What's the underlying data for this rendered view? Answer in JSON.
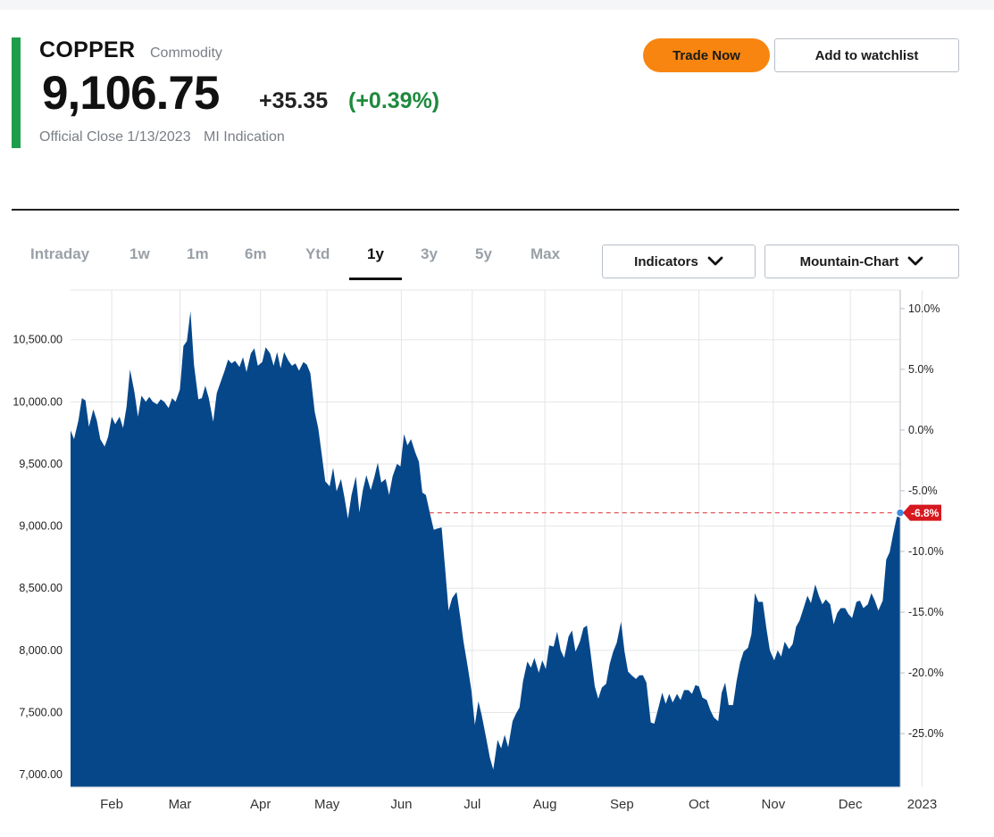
{
  "quote": {
    "name": "COPPER",
    "type": "Commodity",
    "price": "9,106.75",
    "change": "+35.35",
    "change_pct": "(+0.39%)",
    "close_label": "Official Close 1/13/2023",
    "indication": "MI Indication",
    "accent_color": "#1e9e4a",
    "change_color": "#1e8a3c"
  },
  "actions": {
    "trade_label": "Trade Now",
    "watchlist_label": "Add to watchlist",
    "trade_color": "#f7850f"
  },
  "range_tabs": [
    "Intraday",
    "1w",
    "1m",
    "6m",
    "Ytd",
    "1y",
    "3y",
    "5y",
    "Max"
  ],
  "active_tab": "1y",
  "dropdowns": {
    "indicators": "Indicators",
    "chart_type": "Mountain-Chart",
    "icon": "chevron-down-icon"
  },
  "chart_data": {
    "type": "area",
    "fill_color": "#06478a",
    "grid": true,
    "y_left": {
      "ticks": [
        "10,500.00",
        "10,000.00",
        "9,500.00",
        "9,000.00",
        "8,500.00",
        "8,000.00",
        "7,500.00",
        "7,000.00"
      ],
      "tick_values": [
        10500,
        10000,
        9500,
        9000,
        8500,
        8000,
        7500,
        7000
      ],
      "range": [
        6900,
        10900
      ]
    },
    "y_right": {
      "ticks": [
        "10.0%",
        "5.0%",
        "0.0%",
        "-5.0%",
        "-10.0%",
        "-15.0%",
        "-20.0%",
        "-25.0%"
      ],
      "tick_values": [
        10,
        5,
        0,
        -5,
        -10,
        -15,
        -20,
        -25
      ]
    },
    "x_ticks": [
      "Feb",
      "Mar",
      "Apr",
      "May",
      "Jun",
      "Jul",
      "Aug",
      "Sep",
      "Oct",
      "Nov",
      "Dec",
      "2023"
    ],
    "x_tick_values": [
      0.047,
      0.125,
      0.217,
      0.293,
      0.378,
      0.459,
      0.542,
      0.63,
      0.718,
      0.803,
      0.891,
      0.973
    ],
    "last_marker": {
      "label": "-6.8%",
      "value": 9107,
      "color": "#d7181f"
    },
    "points": [
      [
        0.0,
        9770
      ],
      [
        0.004,
        9700
      ],
      [
        0.009,
        9850
      ],
      [
        0.013,
        10030
      ],
      [
        0.017,
        10010
      ],
      [
        0.021,
        9800
      ],
      [
        0.026,
        9940
      ],
      [
        0.03,
        9850
      ],
      [
        0.034,
        9700
      ],
      [
        0.039,
        9640
      ],
      [
        0.043,
        9720
      ],
      [
        0.047,
        9880
      ],
      [
        0.051,
        9820
      ],
      [
        0.056,
        9880
      ],
      [
        0.06,
        9790
      ],
      [
        0.064,
        9960
      ],
      [
        0.068,
        10260
      ],
      [
        0.073,
        10080
      ],
      [
        0.077,
        9880
      ],
      [
        0.081,
        10050
      ],
      [
        0.086,
        10000
      ],
      [
        0.09,
        10040
      ],
      [
        0.094,
        10000
      ],
      [
        0.099,
        9980
      ],
      [
        0.103,
        10020
      ],
      [
        0.107,
        10000
      ],
      [
        0.112,
        9950
      ],
      [
        0.116,
        10030
      ],
      [
        0.12,
        10000
      ],
      [
        0.125,
        10100
      ],
      [
        0.129,
        10450
      ],
      [
        0.133,
        10490
      ],
      [
        0.137,
        10730
      ],
      [
        0.141,
        10300
      ],
      [
        0.146,
        10020
      ],
      [
        0.15,
        10030
      ],
      [
        0.154,
        10130
      ],
      [
        0.158,
        10030
      ],
      [
        0.163,
        9840
      ],
      [
        0.167,
        10070
      ],
      [
        0.171,
        10150
      ],
      [
        0.176,
        10250
      ],
      [
        0.18,
        10340
      ],
      [
        0.184,
        10310
      ],
      [
        0.188,
        10330
      ],
      [
        0.193,
        10280
      ],
      [
        0.197,
        10360
      ],
      [
        0.201,
        10240
      ],
      [
        0.206,
        10390
      ],
      [
        0.21,
        10430
      ],
      [
        0.214,
        10290
      ],
      [
        0.219,
        10320
      ],
      [
        0.223,
        10440
      ],
      [
        0.228,
        10390
      ],
      [
        0.232,
        10290
      ],
      [
        0.236,
        10400
      ],
      [
        0.24,
        10270
      ],
      [
        0.244,
        10400
      ],
      [
        0.249,
        10330
      ],
      [
        0.253,
        10290
      ],
      [
        0.257,
        10310
      ],
      [
        0.261,
        10250
      ],
      [
        0.266,
        10320
      ],
      [
        0.27,
        10300
      ],
      [
        0.274,
        10230
      ],
      [
        0.279,
        9920
      ],
      [
        0.283,
        9790
      ],
      [
        0.287,
        9580
      ],
      [
        0.291,
        9360
      ],
      [
        0.296,
        9320
      ],
      [
        0.3,
        9470
      ],
      [
        0.304,
        9280
      ],
      [
        0.309,
        9380
      ],
      [
        0.313,
        9230
      ],
      [
        0.317,
        9060
      ],
      [
        0.321,
        9250
      ],
      [
        0.326,
        9400
      ],
      [
        0.33,
        9110
      ],
      [
        0.334,
        9290
      ],
      [
        0.338,
        9410
      ],
      [
        0.343,
        9290
      ],
      [
        0.347,
        9390
      ],
      [
        0.351,
        9510
      ],
      [
        0.355,
        9350
      ],
      [
        0.36,
        9380
      ],
      [
        0.364,
        9250
      ],
      [
        0.368,
        9400
      ],
      [
        0.373,
        9500
      ],
      [
        0.377,
        9480
      ],
      [
        0.381,
        9740
      ],
      [
        0.385,
        9650
      ],
      [
        0.389,
        9700
      ],
      [
        0.394,
        9590
      ],
      [
        0.398,
        9520
      ],
      [
        0.402,
        9270
      ],
      [
        0.406,
        9250
      ],
      [
        0.411,
        9090
      ],
      [
        0.415,
        8970
      ],
      [
        0.419,
        8980
      ],
      [
        0.424,
        8990
      ],
      [
        0.428,
        8660
      ],
      [
        0.432,
        8320
      ],
      [
        0.436,
        8420
      ],
      [
        0.441,
        8470
      ],
      [
        0.445,
        8280
      ],
      [
        0.449,
        8070
      ],
      [
        0.454,
        7860
      ],
      [
        0.458,
        7680
      ],
      [
        0.462,
        7400
      ],
      [
        0.466,
        7590
      ],
      [
        0.47,
        7470
      ],
      [
        0.475,
        7290
      ],
      [
        0.479,
        7140
      ],
      [
        0.483,
        7040
      ],
      [
        0.488,
        7280
      ],
      [
        0.492,
        7210
      ],
      [
        0.496,
        7320
      ],
      [
        0.5,
        7220
      ],
      [
        0.505,
        7430
      ],
      [
        0.509,
        7490
      ],
      [
        0.513,
        7540
      ],
      [
        0.517,
        7750
      ],
      [
        0.522,
        7910
      ],
      [
        0.526,
        7860
      ],
      [
        0.53,
        7940
      ],
      [
        0.535,
        7820
      ],
      [
        0.539,
        7920
      ],
      [
        0.543,
        7850
      ],
      [
        0.547,
        8040
      ],
      [
        0.552,
        8030
      ],
      [
        0.556,
        8150
      ],
      [
        0.56,
        8000
      ],
      [
        0.564,
        7940
      ],
      [
        0.569,
        8110
      ],
      [
        0.573,
        8160
      ],
      [
        0.577,
        7990
      ],
      [
        0.582,
        8070
      ],
      [
        0.586,
        8180
      ],
      [
        0.59,
        8200
      ],
      [
        0.594,
        7990
      ],
      [
        0.599,
        7710
      ],
      [
        0.603,
        7610
      ],
      [
        0.607,
        7700
      ],
      [
        0.612,
        7730
      ],
      [
        0.616,
        7890
      ],
      [
        0.62,
        7990
      ],
      [
        0.624,
        8060
      ],
      [
        0.629,
        8230
      ],
      [
        0.633,
        7990
      ],
      [
        0.637,
        7830
      ],
      [
        0.641,
        7800
      ],
      [
        0.646,
        7770
      ],
      [
        0.65,
        7800
      ],
      [
        0.654,
        7800
      ],
      [
        0.658,
        7740
      ],
      [
        0.663,
        7420
      ],
      [
        0.667,
        7410
      ],
      [
        0.671,
        7520
      ],
      [
        0.676,
        7660
      ],
      [
        0.68,
        7570
      ],
      [
        0.684,
        7650
      ],
      [
        0.688,
        7580
      ],
      [
        0.693,
        7650
      ],
      [
        0.697,
        7600
      ],
      [
        0.701,
        7680
      ],
      [
        0.706,
        7680
      ],
      [
        0.71,
        7650
      ],
      [
        0.714,
        7720
      ],
      [
        0.718,
        7710
      ],
      [
        0.722,
        7620
      ],
      [
        0.727,
        7600
      ],
      [
        0.731,
        7520
      ],
      [
        0.735,
        7460
      ],
      [
        0.74,
        7430
      ],
      [
        0.744,
        7660
      ],
      [
        0.748,
        7740
      ],
      [
        0.752,
        7560
      ],
      [
        0.757,
        7560
      ],
      [
        0.761,
        7750
      ],
      [
        0.765,
        7900
      ],
      [
        0.769,
        7990
      ],
      [
        0.774,
        8020
      ],
      [
        0.778,
        8130
      ],
      [
        0.782,
        8460
      ],
      [
        0.786,
        8390
      ],
      [
        0.791,
        8390
      ],
      [
        0.795,
        8180
      ],
      [
        0.799,
        8000
      ],
      [
        0.804,
        7920
      ],
      [
        0.808,
        8000
      ],
      [
        0.812,
        7950
      ],
      [
        0.816,
        8070
      ],
      [
        0.821,
        8010
      ],
      [
        0.825,
        8050
      ],
      [
        0.829,
        8190
      ],
      [
        0.833,
        8240
      ],
      [
        0.838,
        8350
      ],
      [
        0.842,
        8440
      ],
      [
        0.846,
        8380
      ],
      [
        0.851,
        8530
      ],
      [
        0.855,
        8440
      ],
      [
        0.859,
        8370
      ],
      [
        0.863,
        8410
      ],
      [
        0.868,
        8370
      ],
      [
        0.872,
        8210
      ],
      [
        0.876,
        8300
      ],
      [
        0.88,
        8340
      ],
      [
        0.885,
        8340
      ],
      [
        0.889,
        8290
      ],
      [
        0.893,
        8260
      ],
      [
        0.898,
        8390
      ],
      [
        0.902,
        8400
      ],
      [
        0.906,
        8340
      ],
      [
        0.911,
        8370
      ],
      [
        0.915,
        8460
      ],
      [
        0.919,
        8400
      ],
      [
        0.923,
        8320
      ],
      [
        0.928,
        8400
      ],
      [
        0.932,
        8730
      ],
      [
        0.936,
        8790
      ],
      [
        0.94,
        8940
      ],
      [
        0.944,
        9070
      ],
      [
        0.948,
        9107
      ]
    ]
  }
}
